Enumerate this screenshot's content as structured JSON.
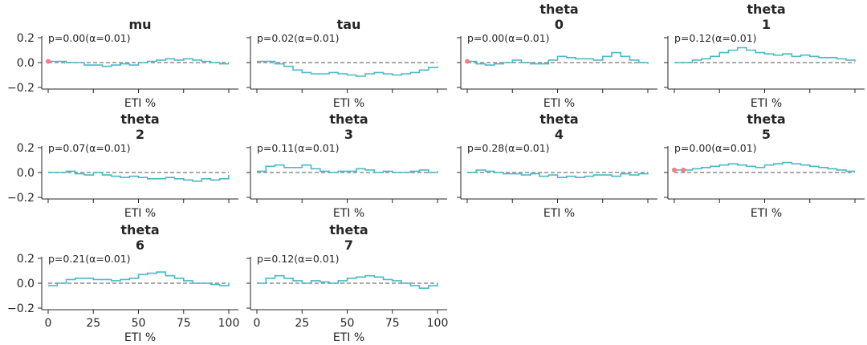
{
  "figure": {
    "subplots": 10,
    "cols": 4
  },
  "chart_data": {
    "type": "line",
    "layout": "grid",
    "colors": {
      "line": "#4bb8c6",
      "outlier": "#f07e8a",
      "reference": "#8c8c8c",
      "axis": "#262626"
    },
    "xlim": [
      0,
      100
    ],
    "ylim": [
      -0.2,
      0.2
    ],
    "xticks": [
      0,
      25,
      50,
      75,
      100
    ],
    "yticks": [
      0.2,
      0.0,
      -0.2
    ],
    "ytick_labels": [
      "0.2",
      "0.0",
      "−0.2"
    ],
    "xlabel": "ETI %",
    "reference_line": {
      "y": 0.0,
      "style": "dashed"
    },
    "panels": [
      {
        "title_lines": [
          "mu"
        ],
        "annotation": "p=0.00(α=0.01)",
        "y": [
          0.01,
          0.01,
          0.0,
          0.0,
          -0.02,
          -0.02,
          -0.03,
          -0.02,
          -0.01,
          -0.02,
          0.0,
          0.01,
          0.02,
          0.03,
          0.02,
          0.03,
          0.02,
          0.01,
          0.0,
          -0.01,
          -0.01
        ],
        "outlier_x": [
          0
        ]
      },
      {
        "title_lines": [
          "tau"
        ],
        "annotation": "p=0.02(α=0.01)",
        "y": [
          0.01,
          0.01,
          -0.01,
          -0.03,
          -0.06,
          -0.08,
          -0.09,
          -0.09,
          -0.08,
          -0.09,
          -0.1,
          -0.11,
          -0.09,
          -0.08,
          -0.09,
          -0.1,
          -0.09,
          -0.08,
          -0.06,
          -0.04,
          -0.03
        ],
        "outlier_x": []
      },
      {
        "title_lines": [
          "theta",
          "0"
        ],
        "annotation": "p=0.00(α=0.01)",
        "y": [
          0.01,
          -0.01,
          -0.02,
          -0.01,
          0.0,
          0.02,
          0.0,
          -0.01,
          -0.01,
          0.02,
          0.05,
          0.04,
          0.03,
          0.03,
          0.02,
          0.05,
          0.08,
          0.05,
          0.02,
          0.0,
          -0.01
        ],
        "outlier_x": [
          0
        ]
      },
      {
        "title_lines": [
          "theta",
          "1"
        ],
        "annotation": "p=0.12(α=0.01)",
        "y": [
          0.0,
          0.0,
          0.02,
          0.03,
          0.05,
          0.08,
          0.1,
          0.12,
          0.1,
          0.08,
          0.07,
          0.06,
          0.07,
          0.05,
          0.06,
          0.05,
          0.04,
          0.04,
          0.03,
          0.02,
          0.01
        ],
        "outlier_x": []
      },
      {
        "title_lines": [
          "theta",
          "2"
        ],
        "annotation": "p=0.07(α=0.01)",
        "y": [
          0.0,
          0.0,
          0.01,
          -0.01,
          -0.02,
          0.0,
          -0.02,
          -0.03,
          -0.04,
          -0.03,
          -0.04,
          -0.05,
          -0.05,
          -0.04,
          -0.05,
          -0.06,
          -0.07,
          -0.05,
          -0.06,
          -0.05,
          -0.02
        ],
        "outlier_x": []
      },
      {
        "title_lines": [
          "theta",
          "3"
        ],
        "annotation": "p=0.11(α=0.01)",
        "y": [
          0.01,
          0.05,
          0.06,
          0.04,
          0.04,
          0.06,
          0.03,
          0.01,
          0.0,
          0.01,
          0.01,
          0.03,
          0.02,
          0.0,
          0.01,
          0.0,
          0.0,
          0.01,
          0.02,
          0.0,
          0.01
        ],
        "outlier_x": []
      },
      {
        "title_lines": [
          "theta",
          "4"
        ],
        "annotation": "p=0.28(α=0.01)",
        "y": [
          0.0,
          0.02,
          0.01,
          0.0,
          -0.01,
          -0.01,
          -0.02,
          -0.01,
          -0.03,
          -0.02,
          -0.04,
          -0.03,
          -0.04,
          -0.03,
          -0.02,
          -0.02,
          -0.03,
          -0.01,
          -0.02,
          -0.01,
          0.0
        ],
        "outlier_x": []
      },
      {
        "title_lines": [
          "theta",
          "5"
        ],
        "annotation": "p=0.00(α=0.01)",
        "y": [
          0.02,
          0.02,
          0.03,
          0.04,
          0.05,
          0.06,
          0.07,
          0.06,
          0.05,
          0.04,
          0.06,
          0.07,
          0.08,
          0.07,
          0.06,
          0.05,
          0.04,
          0.03,
          0.02,
          0.01,
          0.01
        ],
        "outlier_x": [
          0,
          1
        ]
      },
      {
        "title_lines": [
          "theta",
          "6"
        ],
        "annotation": "p=0.21(α=0.01)",
        "y": [
          -0.02,
          0.0,
          0.03,
          0.04,
          0.04,
          0.03,
          0.03,
          0.02,
          0.03,
          0.04,
          0.07,
          0.08,
          0.09,
          0.06,
          0.04,
          0.02,
          0.0,
          0.0,
          -0.01,
          -0.02,
          0.0
        ],
        "outlier_x": []
      },
      {
        "title_lines": [
          "theta",
          "7"
        ],
        "annotation": "p=0.12(α=0.01)",
        "y": [
          0.0,
          0.04,
          0.06,
          0.04,
          0.02,
          0.0,
          0.02,
          0.01,
          0.0,
          0.02,
          0.04,
          0.05,
          0.06,
          0.05,
          0.03,
          0.02,
          0.0,
          -0.02,
          -0.04,
          -0.02,
          0.0
        ],
        "outlier_x": []
      }
    ]
  }
}
